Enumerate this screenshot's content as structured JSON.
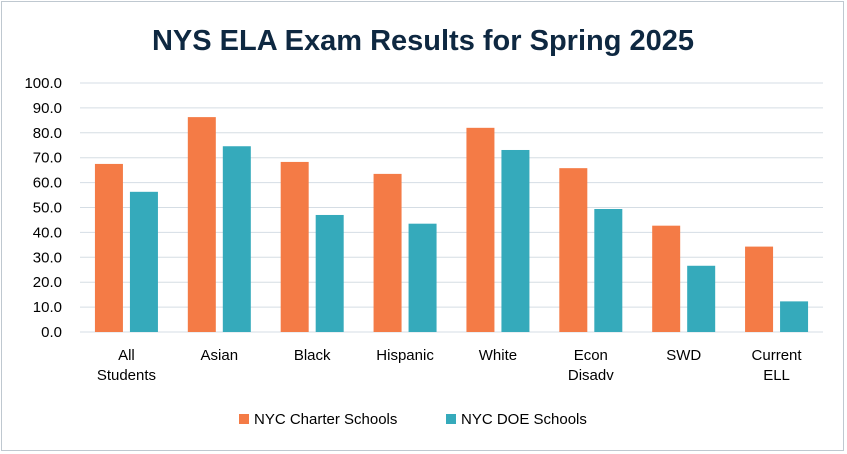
{
  "chart_data": {
    "type": "bar",
    "title": "NYS ELA Exam Results for Spring 2025",
    "xlabel": "",
    "ylabel": "",
    "ylim": [
      0,
      100
    ],
    "yticks": [
      "0.0",
      "10.0",
      "20.0",
      "30.0",
      "40.0",
      "50.0",
      "60.0",
      "70.0",
      "80.0",
      "90.0",
      "100.0"
    ],
    "categories": [
      [
        "All",
        "Students"
      ],
      [
        "Asian"
      ],
      [
        "Black"
      ],
      [
        "Hispanic"
      ],
      [
        "White"
      ],
      [
        "Econ",
        "Disadv"
      ],
      [
        "SWD"
      ],
      [
        "Current",
        "ELL"
      ]
    ],
    "series": [
      {
        "name": "NYC Charter Schools",
        "color": "#f47b46",
        "values": [
          67.5,
          86.3,
          68.3,
          63.5,
          82.0,
          65.8,
          42.7,
          34.3
        ]
      },
      {
        "name": "NYC DOE Schools",
        "color": "#35aabb",
        "values": [
          56.3,
          74.6,
          47.0,
          43.5,
          73.1,
          49.4,
          26.6,
          12.3
        ]
      }
    ],
    "legend_position": "bottom",
    "grid": true
  }
}
